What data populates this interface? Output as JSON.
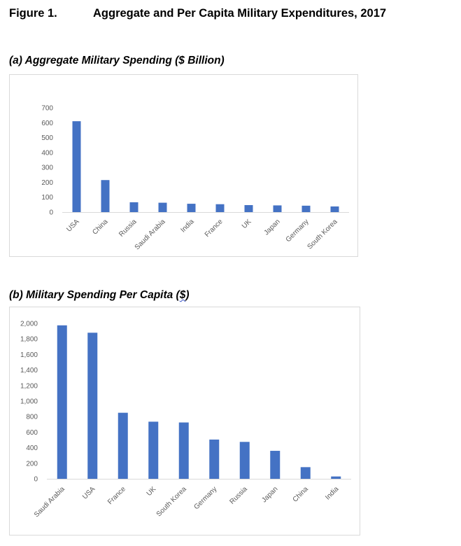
{
  "figure": {
    "number": "Figure 1.",
    "title": "Aggregate and Per Capita Military Expenditures, 2017"
  },
  "panel_a": {
    "title": "(a) Aggregate Military Spending ($ Billion)"
  },
  "panel_b": {
    "title_main": "(b) Military Spending Per Capita (",
    "title_unit": "$",
    "title_end": ")"
  },
  "colors": {
    "bar": "#4472c4",
    "axis": "#d9d9d9",
    "tick_text": "#595959"
  },
  "chart_data": [
    {
      "type": "bar",
      "title": "(a) Aggregate Military Spending ($ Billion)",
      "categories": [
        "USA",
        "China",
        "Russia",
        "Saudi Arabia",
        "India",
        "France",
        "UK",
        "Japan",
        "Germany",
        "South Korea"
      ],
      "values": [
        610,
        215,
        66,
        63,
        56,
        53,
        47,
        45,
        43,
        38
      ],
      "ylim": [
        0,
        700
      ],
      "yticks": [
        "0",
        "100",
        "200",
        "300",
        "400",
        "500",
        "600",
        "700"
      ],
      "grid": false
    },
    {
      "type": "bar",
      "title": "(b) Military Spending Per Capita ($)",
      "categories": [
        "Saudi Arabia",
        "USA",
        "France",
        "UK",
        "South Korea",
        "Germany",
        "Russia",
        "Japan",
        "China",
        "India"
      ],
      "values": [
        1975,
        1880,
        850,
        735,
        725,
        505,
        475,
        360,
        150,
        30
      ],
      "ylim": [
        0,
        2000
      ],
      "yticks": [
        "0",
        "200",
        "400",
        "600",
        "800",
        "1,000",
        "1,200",
        "1,400",
        "1,600",
        "1,800",
        "2,000"
      ],
      "grid": false
    }
  ]
}
